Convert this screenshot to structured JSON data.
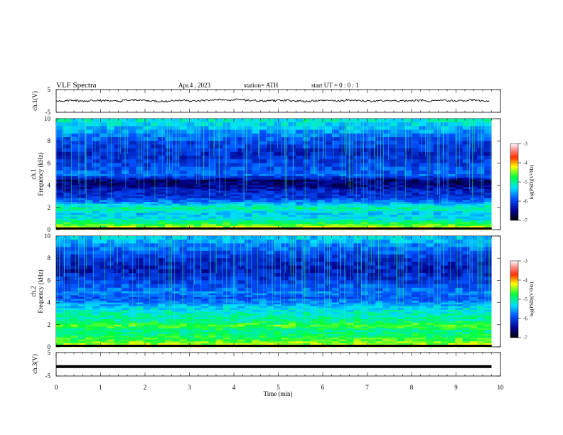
{
  "header": {
    "title": "VLF  Spectra",
    "date": "Apr.4  , 2023",
    "station": "station= ATH",
    "start": "start  UT  =    0  : 0   : 1"
  },
  "chart_data": [
    {
      "type": "line",
      "panel": "ch1-waveform",
      "ylabel": "ch.1(V)",
      "ylim": [
        -5,
        5
      ],
      "yticks": [
        "5",
        "-5"
      ],
      "x": [
        0,
        0.25,
        0.5,
        0.75,
        1,
        1.25,
        1.5,
        1.75,
        2,
        2.25,
        2.5,
        2.75,
        3,
        3.25,
        3.5,
        3.75,
        4,
        4.25,
        4.5,
        4.75,
        5,
        5.25,
        5.5,
        5.75,
        6,
        6.25,
        6.5,
        6.75,
        7,
        7.25,
        7.5,
        7.75,
        8,
        8.25,
        8.5,
        8.75,
        9,
        9.25,
        9.5,
        9.75
      ],
      "values": [
        0,
        0.2,
        -0.1,
        0.3,
        0.1,
        -0.2,
        0.2,
        0.4,
        0,
        -0.2,
        0.1,
        0.3,
        -0.1,
        0.2,
        0.5,
        0.3,
        0.6,
        0.2,
        -0.1,
        0.1,
        0.3,
        0,
        -0.2,
        0.1,
        0.2,
        0,
        0.3,
        0.1,
        -0.1,
        0.2,
        0,
        0.1,
        0.2,
        0,
        0.3,
        0.1,
        0.2,
        0.4,
        0.1,
        0
      ]
    },
    {
      "type": "heatmap",
      "panel": "ch1-spectrogram",
      "ylabel": "ch.1\nFrequency  (kHz)",
      "ylim": [
        0,
        10
      ],
      "yticks": [
        "0",
        "2",
        "4",
        "6",
        "8",
        "10"
      ],
      "colorbar": {
        "label": "log(PSD)(V²/Hz)",
        "ticks": [
          "-3",
          "-4",
          "-5",
          "-6",
          "-7"
        ],
        "range": [
          -7,
          -3
        ]
      },
      "bands_khz": [
        10,
        9,
        8,
        7,
        6,
        5,
        4.5,
        4,
        3.5,
        3,
        2.5,
        2,
        1.5,
        1,
        0.5,
        0
      ],
      "band_levels": [
        -5.2,
        -5.6,
        -6.0,
        -6.2,
        -6.0,
        -5.8,
        -6.6,
        -6.5,
        -6.2,
        -6.1,
        -5.6,
        -5.0,
        -5.4,
        -5.2,
        -4.6,
        -4.0
      ]
    },
    {
      "type": "heatmap",
      "panel": "ch2-spectrogram",
      "ylabel": "ch.2\nFrequency  (kHz)",
      "ylim": [
        0,
        10
      ],
      "yticks": [
        "0",
        "2",
        "4",
        "6",
        "8",
        "10"
      ],
      "colorbar": {
        "label": "log(PSD)(V²/Hz)",
        "ticks": [
          "-3",
          "-4",
          "-5",
          "-6",
          "-7"
        ],
        "range": [
          -7,
          -3
        ]
      },
      "bands_khz": [
        10,
        9,
        8,
        7,
        6,
        5,
        4.5,
        4,
        3.5,
        3,
        2.5,
        2,
        1.5,
        1,
        0.5,
        0
      ],
      "band_levels": [
        -5.4,
        -5.8,
        -6.2,
        -6.3,
        -6.0,
        -5.7,
        -5.9,
        -5.6,
        -5.3,
        -5.1,
        -5.0,
        -4.6,
        -5.0,
        -4.8,
        -4.5,
        -4.2
      ]
    },
    {
      "type": "line",
      "panel": "ch3-waveform",
      "ylabel": "ch.3(V)",
      "ylim": [
        -5,
        5
      ],
      "yticks": [
        "5",
        "-5"
      ],
      "x": [
        0,
        9.8
      ],
      "values": [
        -1,
        -1
      ]
    }
  ],
  "xaxis": {
    "label": "Time  (min)",
    "xlim": [
      0,
      10
    ],
    "ticks": [
      "0",
      "1",
      "2",
      "3",
      "4",
      "5",
      "6",
      "7",
      "8",
      "9",
      "10"
    ]
  }
}
